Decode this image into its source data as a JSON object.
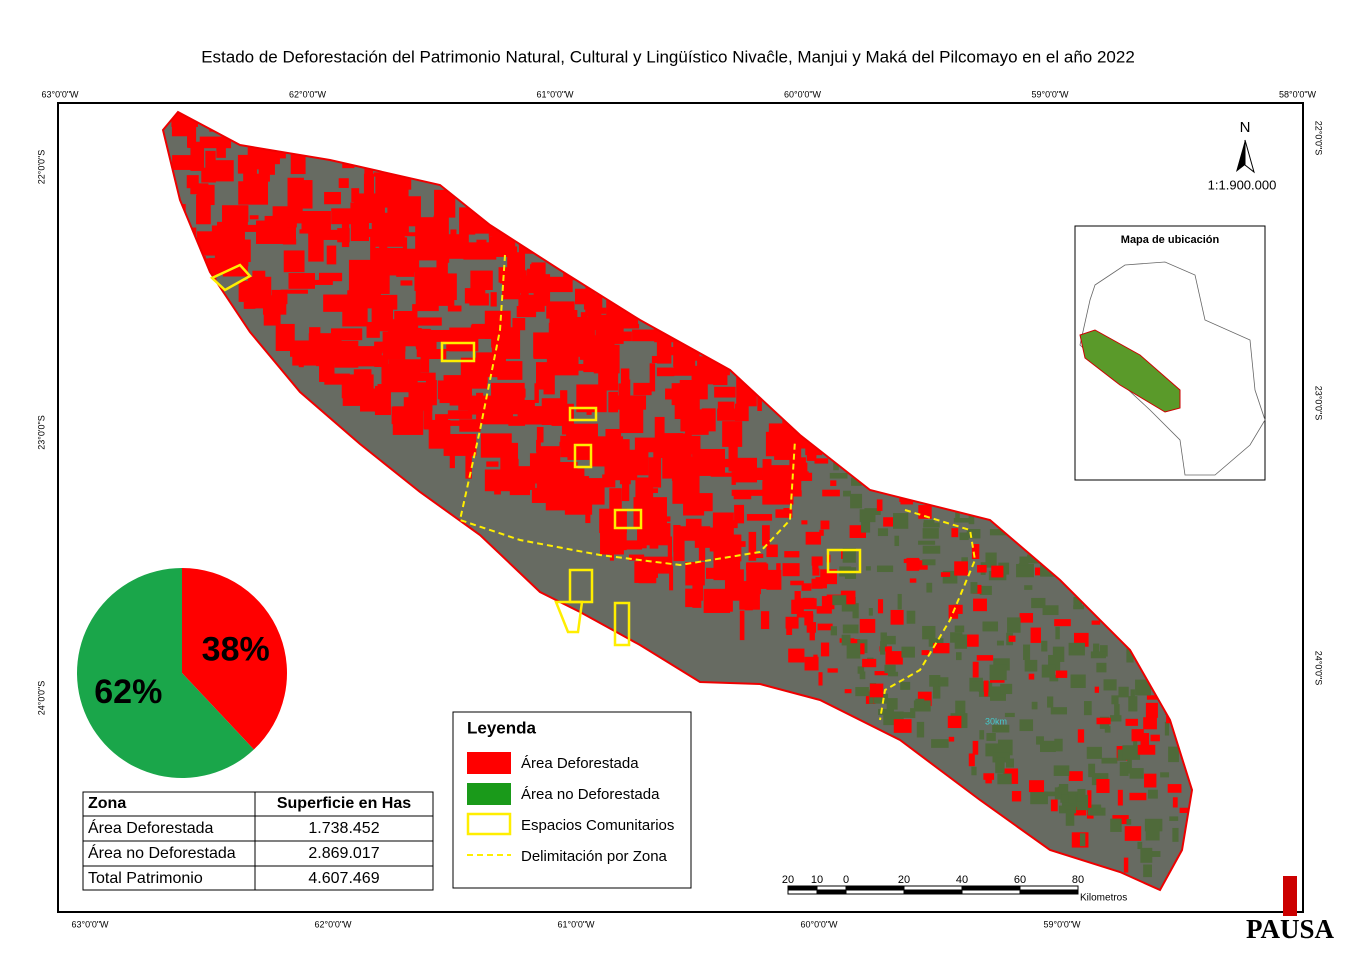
{
  "title": "Estado de Deforestación del Patrimonio Natural, Cultural y Lingüístico Nivaĉle, Manjui y Maká del Pilcomayo en el año 2022",
  "coords": {
    "top": [
      "63°0'0\"W",
      "62°0'0\"W",
      "61°0'0\"W",
      "60°0'0\"W",
      "59°0'0\"W",
      "58°0'0\"W"
    ],
    "bottom": [
      "63°0'0\"W",
      "62°0'0\"W",
      "61°0'0\"W",
      "60°0'0\"W",
      "59°0'0\"W"
    ],
    "left": [
      "22°0'0\"S",
      "23°0'0\"S",
      "24°0'0\"S"
    ],
    "right": [
      "22°0'0\"S",
      "23°0'0\"S",
      "24°0'0\"S"
    ]
  },
  "north": "N",
  "scale": "1:1.900.000",
  "inset_title": "Mapa de ubicación",
  "chart_data": {
    "type": "pie",
    "values": [
      38,
      62
    ],
    "value_labels": [
      "38%",
      "62%"
    ],
    "colors": [
      "#ff0000",
      "#1aa64a"
    ]
  },
  "table": {
    "header": [
      "Zona",
      "Superficie en Has"
    ],
    "rows": [
      [
        "Área Deforestada",
        "1.738.452"
      ],
      [
        "Área no Deforestada",
        "2.869.017"
      ],
      [
        "Total Patrimonio",
        "4.607.469"
      ]
    ]
  },
  "legend": {
    "title": "Leyenda",
    "items": [
      "Área Deforestada",
      "Área no Deforestada",
      "Espacios Comunitarios",
      "Delimitación por Zona"
    ]
  },
  "scalebar": {
    "labels": [
      20,
      10,
      0,
      20,
      40,
      60,
      80
    ],
    "unit": "Kilometros"
  },
  "map_label": "30km",
  "logo": "PAUSA"
}
